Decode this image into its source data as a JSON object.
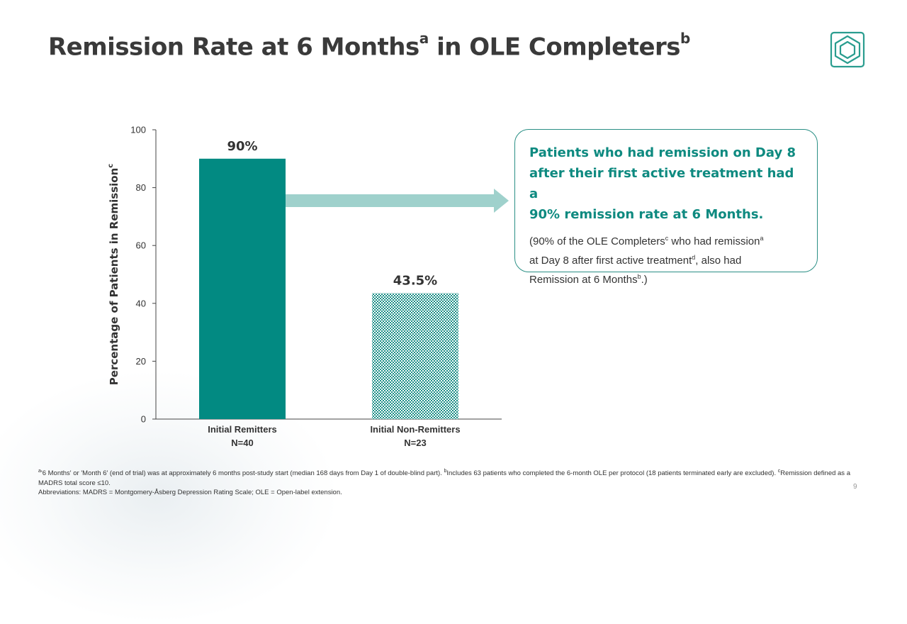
{
  "slide": {
    "title": "Remission Rate at 6 Months",
    "title_sup_a": "a",
    "title_mid": " in OLE Completers",
    "title_sup_b": "b",
    "page_number": "9"
  },
  "colors": {
    "teal_bar": "#028a82",
    "hatch_bar": "#1a8e86",
    "arrow": "#9fd1cc",
    "accent_text": "#0e8a80",
    "callout_border": "#2a8f85",
    "logo": "#2a9d8f"
  },
  "chart_data": {
    "type": "bar",
    "ylabel": "Percentage of Patients in Remission",
    "ylabel_sup": "c",
    "ylim": [
      0,
      100
    ],
    "yticks": [
      "0",
      "20",
      "40",
      "60",
      "80",
      "100"
    ],
    "categories": [
      {
        "line1": "Initial Remitters",
        "line2": "N=40"
      },
      {
        "line1": "Initial Non-Remitters",
        "line2": "N=23"
      }
    ],
    "values": [
      90,
      43.5
    ],
    "data_labels": [
      "90%",
      "43.5%"
    ],
    "styles": [
      "solid",
      "hatched"
    ]
  },
  "callout": {
    "main_line1": "Patients who had remission on Day 8",
    "main_line2": "after their first active treatment had a",
    "main_line3": "90% remission rate at 6 Months.",
    "sub_a": "(90% of the OLE Completers",
    "sub_sup_c": "c",
    "sub_b": " who had remission",
    "sub_sup_a": "a",
    "sub_c": "at Day 8 after first active treatment",
    "sub_sup_d": "d",
    "sub_d": ", also had",
    "sub_e": "Remission at 6 Months",
    "sub_sup_b": "b",
    "sub_f": ".)"
  },
  "footnote": {
    "sup_a": "a",
    "text_a": "'6 Months' or 'Month 6' (end of trial) was at approximately 6 months post-study start (median 168 days from Day 1 of double-blind part). ",
    "sup_b": "b",
    "text_b": "Includes 63 patients who completed the 6-month OLE per protocol (18 patients terminated early are excluded). ",
    "sup_c": "c",
    "text_c": "Remission defined as a MADRS total score ≤10.",
    "abbreviations": "Abbreviations: MADRS = Montgomery-Åsberg Depression Rating Scale; OLE = Open-label extension."
  }
}
